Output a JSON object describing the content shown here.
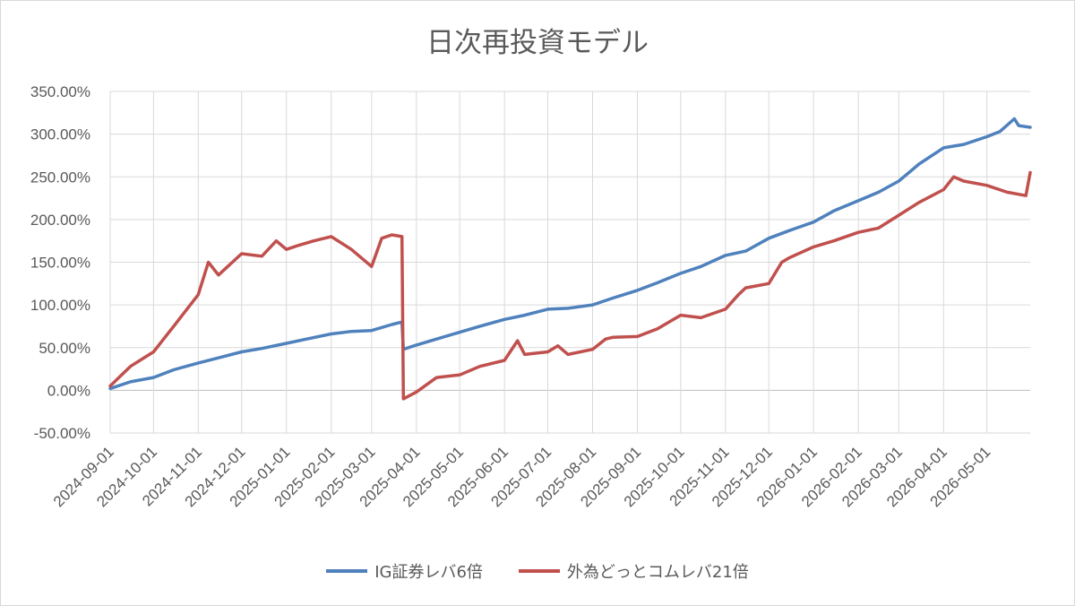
{
  "chart_data": {
    "type": "line",
    "title": "日次再投資モデル",
    "y_ticks": [
      "350.00%",
      "300.00%",
      "250.00%",
      "200.00%",
      "150.00%",
      "100.00%",
      "50.00%",
      "0.00%",
      "-50.00%"
    ],
    "ylim": [
      -50,
      350
    ],
    "x_ticks": [
      "2024-09-01",
      "2024-10-01",
      "2024-11-01",
      "2024-12-01",
      "2025-01-01",
      "2025-02-01",
      "2025-03-01",
      "2025-04-01",
      "2025-05-01",
      "2025-06-01",
      "2025-07-01",
      "2025-08-01",
      "2025-09-01",
      "2025-10-01",
      "2025-11-01",
      "2025-12-01",
      "2026-01-01",
      "2026-02-01",
      "2026-03-01",
      "2026-04-01",
      "2026-05-01"
    ],
    "xlim": [
      "2024-09-01",
      "2026-05-31"
    ],
    "grid": true,
    "legend": "bottom",
    "series": [
      {
        "name": "IG証券レバ6倍",
        "color": "#4f81bd",
        "points": [
          [
            "2024-09-01",
            2
          ],
          [
            "2024-09-15",
            10
          ],
          [
            "2024-10-01",
            15
          ],
          [
            "2024-10-15",
            24
          ],
          [
            "2024-11-01",
            32
          ],
          [
            "2024-11-15",
            38
          ],
          [
            "2024-12-01",
            45
          ],
          [
            "2024-12-15",
            49
          ],
          [
            "2025-01-01",
            55
          ],
          [
            "2025-01-15",
            60
          ],
          [
            "2025-02-01",
            66
          ],
          [
            "2025-02-15",
            69
          ],
          [
            "2025-03-01",
            70
          ],
          [
            "2025-03-15",
            77
          ],
          [
            "2025-03-22",
            80
          ],
          [
            "2025-03-23",
            48
          ],
          [
            "2025-04-01",
            53
          ],
          [
            "2025-04-15",
            60
          ],
          [
            "2025-05-01",
            68
          ],
          [
            "2025-05-15",
            75
          ],
          [
            "2025-06-01",
            83
          ],
          [
            "2025-06-15",
            88
          ],
          [
            "2025-07-01",
            95
          ],
          [
            "2025-07-15",
            96
          ],
          [
            "2025-08-01",
            100
          ],
          [
            "2025-08-15",
            108
          ],
          [
            "2025-09-01",
            117
          ],
          [
            "2025-09-15",
            126
          ],
          [
            "2025-10-01",
            137
          ],
          [
            "2025-10-15",
            145
          ],
          [
            "2025-11-01",
            158
          ],
          [
            "2025-11-15",
            163
          ],
          [
            "2025-12-01",
            178
          ],
          [
            "2025-12-15",
            187
          ],
          [
            "2026-01-01",
            197
          ],
          [
            "2026-01-15",
            210
          ],
          [
            "2026-02-01",
            222
          ],
          [
            "2026-02-15",
            232
          ],
          [
            "2026-03-01",
            245
          ],
          [
            "2026-03-15",
            265
          ],
          [
            "2026-04-01",
            284
          ],
          [
            "2026-04-15",
            288
          ],
          [
            "2026-05-01",
            297
          ],
          [
            "2026-05-10",
            303
          ],
          [
            "2026-05-20",
            318
          ],
          [
            "2026-05-23",
            310
          ],
          [
            "2026-05-31",
            308
          ]
        ]
      },
      {
        "name": "外為どっとコムレバ21倍",
        "color": "#c0504d",
        "points": [
          [
            "2024-09-01",
            5
          ],
          [
            "2024-09-15",
            28
          ],
          [
            "2024-10-01",
            45
          ],
          [
            "2024-10-15",
            75
          ],
          [
            "2024-11-01",
            112
          ],
          [
            "2024-11-08",
            150
          ],
          [
            "2024-11-15",
            135
          ],
          [
            "2024-12-01",
            160
          ],
          [
            "2024-12-15",
            157
          ],
          [
            "2024-12-25",
            175
          ],
          [
            "2025-01-01",
            165
          ],
          [
            "2025-01-10",
            170
          ],
          [
            "2025-01-20",
            175
          ],
          [
            "2025-02-01",
            180
          ],
          [
            "2025-02-15",
            165
          ],
          [
            "2025-03-01",
            145
          ],
          [
            "2025-03-08",
            178
          ],
          [
            "2025-03-15",
            182
          ],
          [
            "2025-03-22",
            180
          ],
          [
            "2025-03-23",
            -10
          ],
          [
            "2025-04-01",
            -2
          ],
          [
            "2025-04-15",
            15
          ],
          [
            "2025-05-01",
            18
          ],
          [
            "2025-05-15",
            28
          ],
          [
            "2025-06-01",
            35
          ],
          [
            "2025-06-10",
            58
          ],
          [
            "2025-06-15",
            42
          ],
          [
            "2025-07-01",
            45
          ],
          [
            "2025-07-08",
            52
          ],
          [
            "2025-07-15",
            42
          ],
          [
            "2025-08-01",
            48
          ],
          [
            "2025-08-10",
            60
          ],
          [
            "2025-08-15",
            62
          ],
          [
            "2025-09-01",
            63
          ],
          [
            "2025-09-15",
            72
          ],
          [
            "2025-10-01",
            88
          ],
          [
            "2025-10-15",
            85
          ],
          [
            "2025-11-01",
            95
          ],
          [
            "2025-11-10",
            112
          ],
          [
            "2025-11-15",
            120
          ],
          [
            "2025-12-01",
            125
          ],
          [
            "2025-12-10",
            150
          ],
          [
            "2025-12-15",
            155
          ],
          [
            "2026-01-01",
            168
          ],
          [
            "2026-01-15",
            175
          ],
          [
            "2026-02-01",
            185
          ],
          [
            "2026-02-15",
            190
          ],
          [
            "2026-03-01",
            205
          ],
          [
            "2026-03-15",
            220
          ],
          [
            "2026-04-01",
            235
          ],
          [
            "2026-04-08",
            250
          ],
          [
            "2026-04-15",
            245
          ],
          [
            "2026-05-01",
            240
          ],
          [
            "2026-05-15",
            232
          ],
          [
            "2026-05-28",
            228
          ],
          [
            "2026-05-31",
            255
          ]
        ]
      }
    ]
  }
}
